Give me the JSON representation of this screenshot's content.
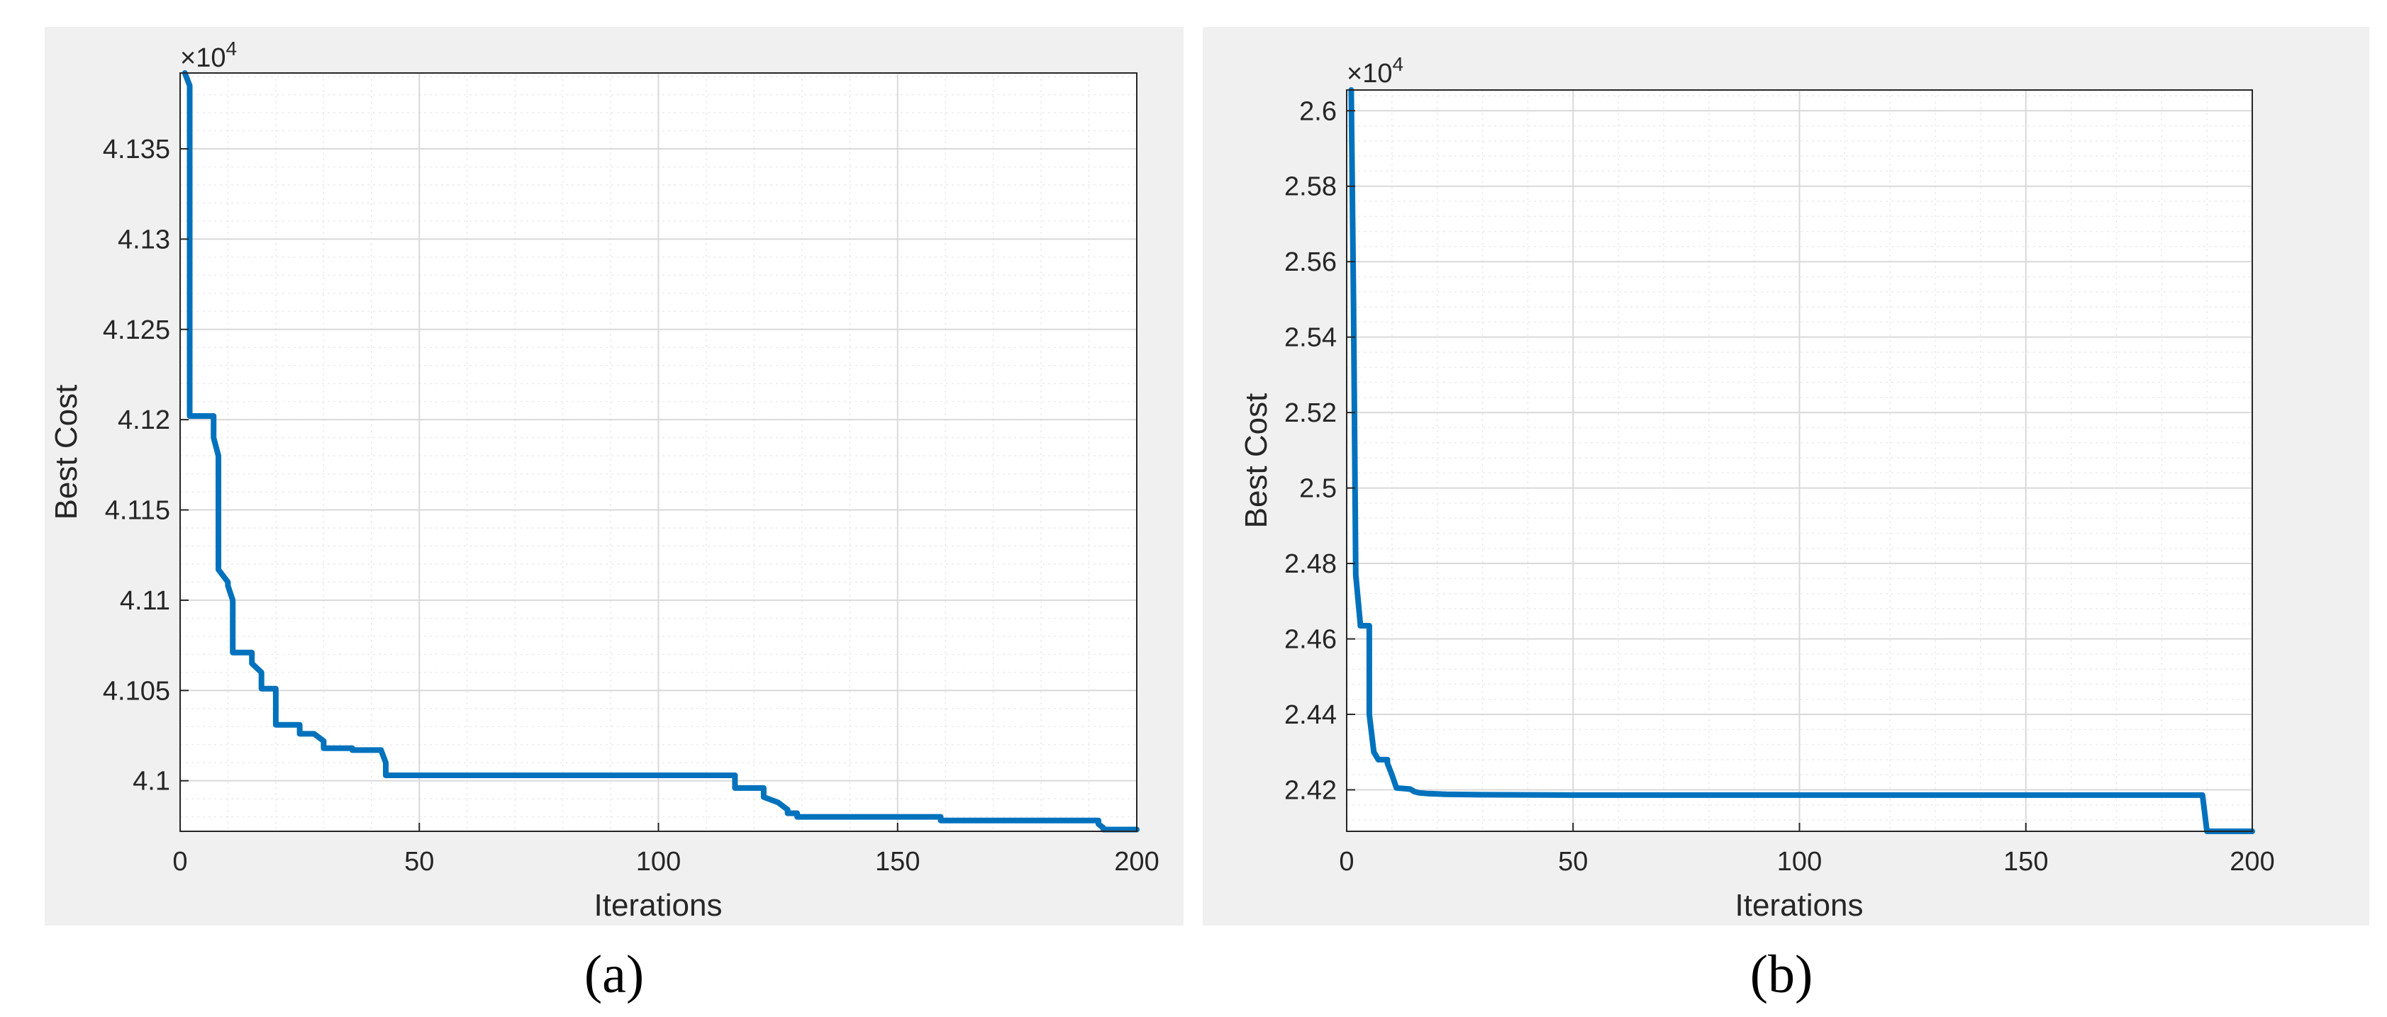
{
  "colors": {
    "figure_bg": "#f0f0f0",
    "axes_bg": "#ffffff",
    "line": "#0072bd",
    "grid": "#d9d9d9",
    "minor_grid": "#ececec",
    "axis": "#262626"
  },
  "chart_data": [
    {
      "type": "line",
      "caption": "(a)",
      "xlabel": "Iterations",
      "ylabel": "Best Cost",
      "exponent_label": "×10^4",
      "xlim": [
        0,
        200
      ],
      "ylim": [
        4.0972,
        4.1392
      ],
      "xticks": [
        0,
        50,
        100,
        150,
        200
      ],
      "xtick_labels": [
        "0",
        "50",
        "100",
        "150",
        "200"
      ],
      "yticks": [
        4.1,
        4.105,
        4.11,
        4.115,
        4.12,
        4.125,
        4.13,
        4.135
      ],
      "ytick_labels": [
        "4.1",
        "4.105",
        "4.11",
        "4.115",
        "4.12",
        "4.125",
        "4.13",
        "4.135"
      ],
      "grid": true,
      "minor_grid": true,
      "series": [
        {
          "x": [
            1,
            2,
            2,
            7,
            7,
            8,
            8,
            10,
            10,
            11,
            11,
            15,
            15,
            17,
            17,
            20,
            20,
            22,
            22,
            25,
            25,
            28,
            28,
            30,
            30,
            36,
            36,
            42,
            42,
            43,
            43,
            116,
            116,
            122,
            122,
            125,
            125,
            127,
            127,
            129,
            129,
            131,
            131,
            159,
            159,
            192,
            192,
            193,
            193,
            200
          ],
          "y": [
            4.1392,
            4.1385,
            4.1202,
            4.1202,
            4.119,
            4.118,
            4.1117,
            4.111,
            4.1108,
            4.11,
            4.1071,
            4.1071,
            4.1065,
            4.106,
            4.1051,
            4.1051,
            4.1031,
            4.1031,
            4.1031,
            4.1031,
            4.1026,
            4.1026,
            4.1026,
            4.1022,
            4.1018,
            4.1018,
            4.1017,
            4.1017,
            4.1017,
            4.101,
            4.1003,
            4.1003,
            4.0996,
            4.0996,
            4.0991,
            4.0988,
            4.0988,
            4.0984,
            4.0982,
            4.0982,
            4.098,
            4.098,
            4.098,
            4.098,
            4.0978,
            4.0978,
            4.0976,
            4.0974,
            4.0973,
            4.0973
          ]
        }
      ]
    },
    {
      "type": "line",
      "caption": "(b)",
      "xlabel": "Iterations",
      "ylabel": "Best Cost",
      "exponent_label": "×10^4",
      "xlim": [
        0,
        200
      ],
      "ylim": [
        2.409,
        2.6055
      ],
      "xticks": [
        0,
        50,
        100,
        150,
        200
      ],
      "xtick_labels": [
        "0",
        "50",
        "100",
        "150",
        "200"
      ],
      "yticks": [
        2.42,
        2.44,
        2.46,
        2.48,
        2.5,
        2.52,
        2.54,
        2.56,
        2.58,
        2.6
      ],
      "ytick_labels": [
        "2.42",
        "2.44",
        "2.46",
        "2.48",
        "2.5",
        "2.52",
        "2.54",
        "2.56",
        "2.58",
        "2.6"
      ],
      "grid": true,
      "minor_grid": true,
      "series": [
        {
          "x": [
            1,
            1.5,
            2,
            3,
            3,
            5,
            5,
            6,
            7,
            7,
            9,
            9,
            10,
            11,
            11,
            14,
            15,
            16,
            18,
            22,
            30,
            50,
            100,
            189,
            190,
            200
          ],
          "y": [
            2.6055,
            2.55,
            2.477,
            2.464,
            2.4635,
            2.4635,
            2.44,
            2.43,
            2.428,
            2.428,
            2.428,
            2.427,
            2.424,
            2.4205,
            2.4205,
            2.4202,
            2.4195,
            2.4192,
            2.419,
            2.4188,
            2.4187,
            2.4186,
            2.4186,
            2.4186,
            2.409,
            2.409
          ]
        }
      ]
    }
  ]
}
